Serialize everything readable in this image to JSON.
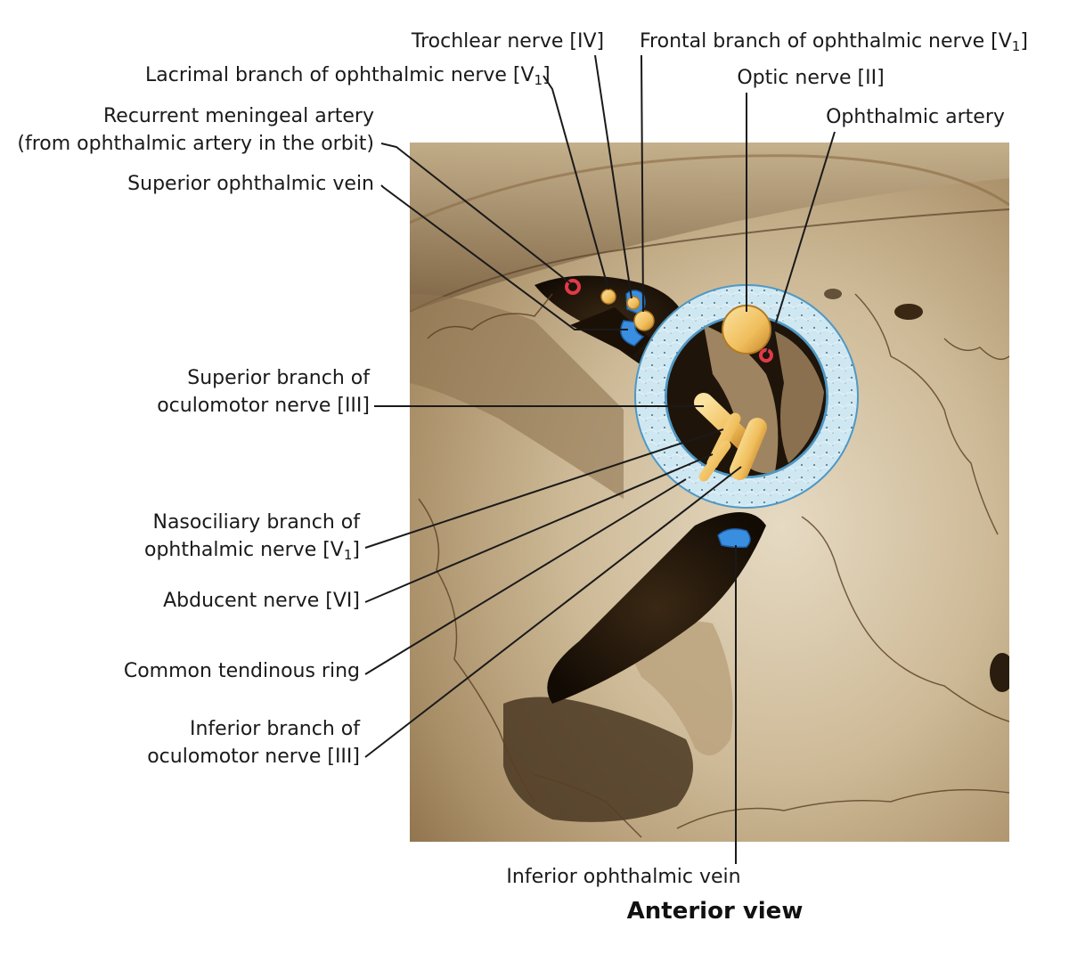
{
  "labels": {
    "trochlear": "Trochlear nerve [IV]",
    "frontal": "Frontal branch of ophthalmic nerve [V",
    "frontal_sub": "1",
    "frontal_end": "]",
    "lacrimal": "Lacrimal branch of ophthalmic nerve [V",
    "lacrimal_sub": "1",
    "lacrimal_end": "]",
    "optic": "Optic nerve [II]",
    "ophthalmic_artery": "Ophthalmic artery",
    "recurrent_line1": "Recurrent meningeal artery",
    "recurrent_line2": "(from ophthalmic artery in the orbit)",
    "superior_vein": "Superior ophthalmic vein",
    "superior_branch_line1": "Superior branch of",
    "superior_branch_line2": "oculomotor nerve [III]",
    "nasociliary_line1": "Nasociliary branch of",
    "nasociliary_line2": "ophthalmic nerve [V",
    "nasociliary_sub": "1",
    "nasociliary_end": "]",
    "abducent": "Abducent nerve [VI]",
    "tendinous_ring": "Common tendinous ring",
    "inferior_branch_line1": "Inferior branch of",
    "inferior_branch_line2": "oculomotor nerve [III]",
    "inferior_vein": "Inferior ophthalmic vein"
  },
  "caption": "Anterior view",
  "colors": {
    "bone_light": "#d9cbb0",
    "bone_mid": "#b49c76",
    "bone_dark": "#6e5537",
    "fissure": "#1c1208",
    "nerve": "#f2c66a",
    "nerve_dark": "#c88a2c",
    "artery": "#e03a4a",
    "vein": "#3a8ee0",
    "ring": "#cfe6f0",
    "ring_edge": "#5aa6cf",
    "leader": "#1a1a1a"
  }
}
